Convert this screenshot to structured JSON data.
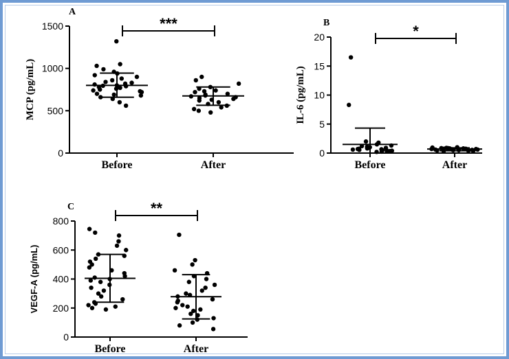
{
  "chart_data": [
    {
      "type": "scatter",
      "panel": "A",
      "ylabel": "MCP (pg/mL)",
      "categories": [
        "Before",
        "After"
      ],
      "ylim": [
        0,
        1500
      ],
      "yticks": [
        0,
        500,
        1000,
        1500
      ],
      "significance": "***",
      "series": [
        {
          "category": "Before",
          "mean": 800,
          "sd_low": 660,
          "sd_high": 945,
          "values": [
            1320,
            1050,
            1030,
            990,
            960,
            940,
            920,
            900,
            880,
            860,
            840,
            830,
            820,
            810,
            800,
            795,
            790,
            780,
            770,
            760,
            750,
            740,
            730,
            720,
            700,
            690,
            680,
            660,
            640,
            600,
            560
          ]
        },
        {
          "category": "After",
          "mean": 675,
          "sd_low": 565,
          "sd_high": 780,
          "values": [
            900,
            860,
            820,
            780,
            760,
            740,
            730,
            720,
            700,
            690,
            680,
            670,
            660,
            650,
            640,
            630,
            620,
            600,
            580,
            560,
            540,
            520,
            500,
            480
          ]
        }
      ]
    },
    {
      "type": "scatter",
      "panel": "B",
      "ylabel": "IL-6 (pg/mL)",
      "categories": [
        "Before",
        "After"
      ],
      "ylim": [
        0,
        20
      ],
      "yticks": [
        0,
        5,
        10,
        15,
        20
      ],
      "significance": "*",
      "series": [
        {
          "category": "Before",
          "mean": 1.5,
          "sd_low": 0,
          "sd_high": 4.3,
          "values": [
            16.5,
            8.3,
            2.0,
            1.8,
            1.5,
            1.3,
            1.2,
            1.1,
            1.0,
            0.95,
            0.9,
            0.85,
            0.8,
            0.75,
            0.7,
            0.65,
            0.6,
            0.55,
            0.5,
            0.45,
            0.4,
            0.35,
            0.3,
            0.25,
            0.2
          ]
        },
        {
          "category": "After",
          "mean": 0.7,
          "sd_low": 0.4,
          "sd_high": 0.9,
          "values": [
            1.0,
            0.95,
            0.9,
            0.85,
            0.85,
            0.8,
            0.8,
            0.75,
            0.75,
            0.7,
            0.7,
            0.7,
            0.65,
            0.65,
            0.6,
            0.6,
            0.55,
            0.55,
            0.5,
            0.5,
            0.45,
            0.4,
            0.35,
            0.3
          ]
        }
      ]
    },
    {
      "type": "scatter",
      "panel": "C",
      "ylabel": "VEGF-A (pg/mL)",
      "categories": [
        "Before",
        "After"
      ],
      "ylim": [
        0,
        800
      ],
      "yticks": [
        0,
        200,
        400,
        600,
        800
      ],
      "significance": "**",
      "series": [
        {
          "category": "Before",
          "mean": 405,
          "sd_low": 240,
          "sd_high": 570,
          "values": [
            745,
            720,
            700,
            660,
            630,
            600,
            570,
            560,
            540,
            520,
            500,
            480,
            460,
            440,
            420,
            410,
            400,
            390,
            380,
            360,
            340,
            320,
            300,
            280,
            260,
            240,
            230,
            220,
            210,
            200,
            190
          ]
        },
        {
          "category": "After",
          "mean": 278,
          "sd_low": 125,
          "sd_high": 430,
          "values": [
            705,
            530,
            500,
            460,
            440,
            420,
            400,
            380,
            360,
            340,
            320,
            300,
            290,
            280,
            260,
            250,
            240,
            220,
            210,
            200,
            190,
            180,
            160,
            150,
            130,
            120,
            100,
            80,
            55
          ]
        }
      ]
    }
  ]
}
